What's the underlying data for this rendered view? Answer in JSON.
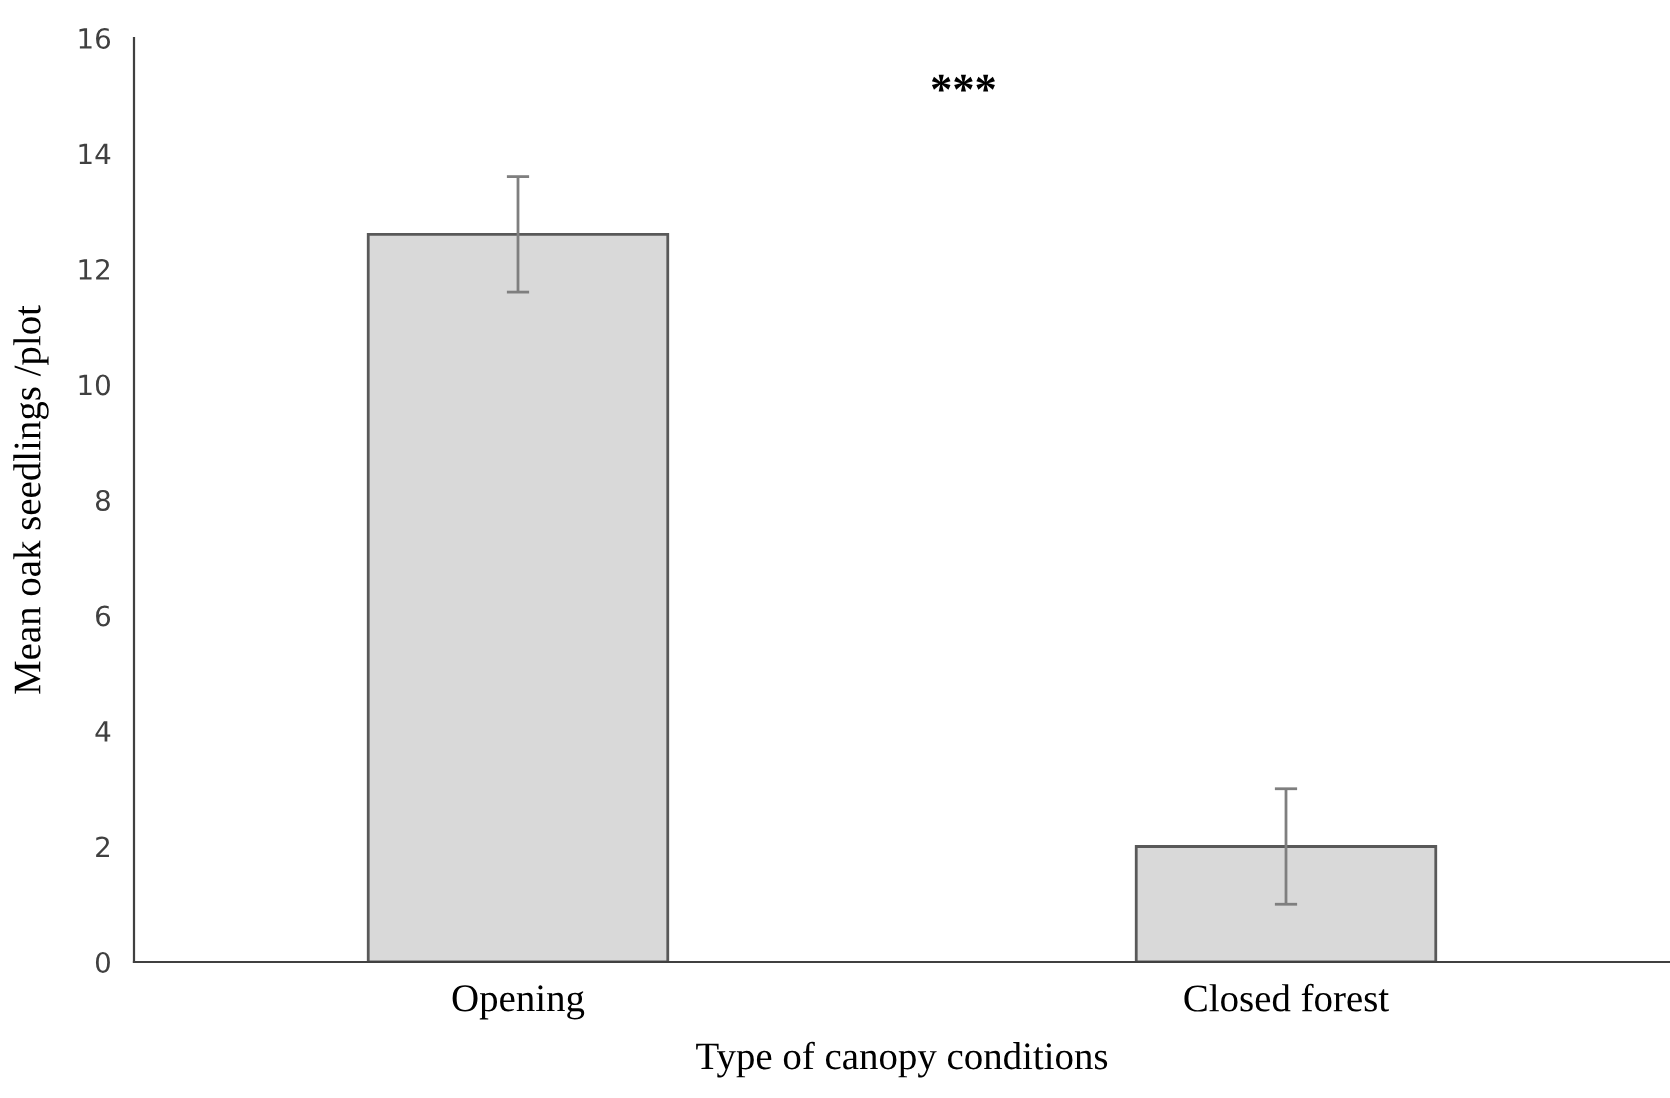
{
  "chart_data": {
    "type": "bar",
    "xlabel": "Type of canopy conditions",
    "ylabel": "Mean oak seedlings /plot",
    "categories": [
      "Opening",
      "Closed forest"
    ],
    "values": [
      12.6,
      2.0
    ],
    "errors": [
      1.0,
      1.0
    ],
    "color": "#d9d9d9",
    "ylim": [
      0,
      16
    ],
    "yticks": [
      0,
      2,
      4,
      6,
      8,
      10,
      12,
      14,
      16
    ],
    "grid": false,
    "annotations": [
      "***"
    ]
  }
}
